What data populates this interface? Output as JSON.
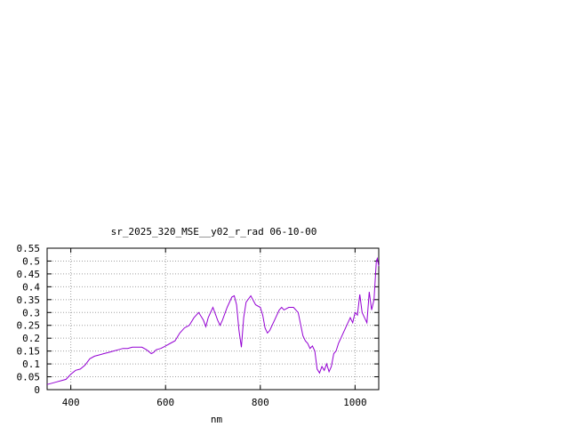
{
  "chart_data": {
    "type": "line",
    "title": "sr_2025_320_MSE__y02_r_rad 06-10-00",
    "xlabel": "nm",
    "ylabel": "",
    "xlim": [
      350,
      1050
    ],
    "ylim": [
      0,
      0.55
    ],
    "grid": true,
    "legend": "none",
    "x_ticks": [
      400,
      600,
      800,
      1000
    ],
    "y_ticks": [
      0,
      0.05,
      0.1,
      0.15,
      0.2,
      0.25,
      0.3,
      0.35,
      0.4,
      0.45,
      0.5,
      0.55
    ],
    "y_tick_labels": [
      "0",
      "0.05",
      "0.1",
      "0.15",
      "0.2",
      "0.25",
      "0.3",
      "0.35",
      "0.4",
      "0.45",
      "0.5",
      "0.55"
    ],
    "series": [
      {
        "color": "#9400d3",
        "x": [
          350,
          360,
          370,
          380,
          390,
          395,
          400,
          410,
          420,
          430,
          440,
          450,
          460,
          470,
          480,
          490,
          500,
          510,
          520,
          530,
          540,
          550,
          560,
          570,
          575,
          580,
          590,
          600,
          610,
          620,
          630,
          640,
          650,
          660,
          670,
          680,
          685,
          690,
          700,
          710,
          715,
          720,
          730,
          740,
          745,
          750,
          755,
          760,
          765,
          770,
          780,
          790,
          800,
          805,
          810,
          815,
          820,
          830,
          840,
          845,
          850,
          860,
          870,
          880,
          890,
          895,
          900,
          905,
          910,
          915,
          920,
          925,
          930,
          935,
          940,
          945,
          950,
          955,
          960,
          965,
          970,
          980,
          990,
          995,
          1000,
          1005,
          1010,
          1015,
          1020,
          1025,
          1030,
          1035,
          1040,
          1045,
          1047,
          1050
        ],
        "y": [
          0.02,
          0.025,
          0.03,
          0.035,
          0.04,
          0.05,
          0.06,
          0.075,
          0.08,
          0.095,
          0.12,
          0.13,
          0.135,
          0.14,
          0.145,
          0.15,
          0.155,
          0.16,
          0.16,
          0.165,
          0.165,
          0.165,
          0.155,
          0.14,
          0.145,
          0.155,
          0.16,
          0.17,
          0.18,
          0.19,
          0.22,
          0.24,
          0.25,
          0.28,
          0.3,
          0.27,
          0.245,
          0.28,
          0.32,
          0.27,
          0.25,
          0.27,
          0.32,
          0.36,
          0.365,
          0.33,
          0.23,
          0.165,
          0.28,
          0.34,
          0.365,
          0.33,
          0.32,
          0.29,
          0.24,
          0.22,
          0.23,
          0.27,
          0.31,
          0.32,
          0.31,
          0.32,
          0.32,
          0.3,
          0.21,
          0.19,
          0.18,
          0.16,
          0.17,
          0.15,
          0.08,
          0.065,
          0.09,
          0.075,
          0.1,
          0.07,
          0.09,
          0.14,
          0.15,
          0.18,
          0.2,
          0.24,
          0.28,
          0.26,
          0.3,
          0.29,
          0.37,
          0.3,
          0.28,
          0.26,
          0.38,
          0.31,
          0.35,
          0.5,
          0.51,
          0.48
        ]
      }
    ]
  }
}
